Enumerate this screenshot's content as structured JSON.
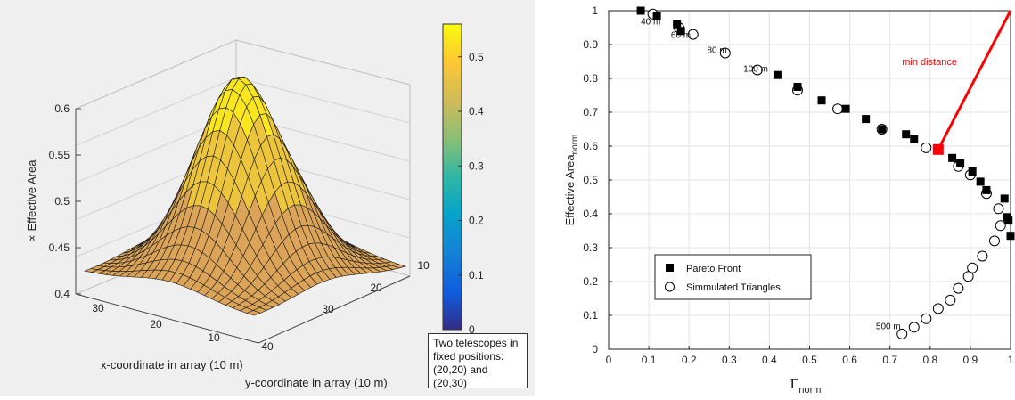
{
  "colors": {
    "surface_hi": "#f9e61e",
    "surface_mid": "#ecc53c",
    "surface_lo": "#dca458",
    "mesh": "#1a1a1a",
    "pareto": "#000000",
    "highlight": "#ff0000",
    "axis": "#222222"
  },
  "annotation": {
    "lines": [
      "Two telescopes in",
      "fixed positions:",
      "(20,20) and (20,30)"
    ]
  },
  "chart_data": [
    {
      "type": "surface3d",
      "zlabel": "∝ Effective Area",
      "xlabel": "x-coordinate in array (10 m)",
      "ylabel": "y-coordinate in array (10 m)",
      "z_ticks": [
        "0.4",
        "0.45",
        "0.5",
        "0.55",
        "0.6"
      ],
      "z_range": [
        0.4,
        0.6
      ],
      "x_ticks": [
        "30",
        "20",
        "10"
      ],
      "y_ticks": [
        "10",
        "20",
        "30",
        "40"
      ],
      "colorbar": {
        "ticks": [
          "0",
          "0.1",
          "0.2",
          "0.3",
          "0.4",
          "0.5"
        ],
        "range": [
          0,
          0.56
        ],
        "colormap": "parula"
      },
      "grid": true
    },
    {
      "type": "scatter",
      "xlabel_main": "Γ",
      "xlabel_sub": "norm",
      "ylabel_main": "Effective Area",
      "ylabel_sub": "norm",
      "xlim": [
        0,
        1
      ],
      "ylim": [
        0,
        1
      ],
      "x_ticks": [
        "0",
        "0.1",
        "0.2",
        "0.3",
        "0.4",
        "0.5",
        "0.6",
        "0.7",
        "0.8",
        "0.9",
        "1"
      ],
      "y_ticks": [
        "0",
        "0.1",
        "0.2",
        "0.3",
        "0.4",
        "0.5",
        "0.6",
        "0.7",
        "0.8",
        "0.9",
        "1"
      ],
      "grid": true,
      "legend_placement": "bottom-left",
      "series": [
        {
          "name": "Pareto Front",
          "marker": "filled-square",
          "points": [
            [
              0.08,
              1.0
            ],
            [
              0.12,
              0.985
            ],
            [
              0.17,
              0.96
            ],
            [
              0.18,
              0.94
            ],
            [
              0.42,
              0.81
            ],
            [
              0.47,
              0.775
            ],
            [
              0.53,
              0.735
            ],
            [
              0.59,
              0.71
            ],
            [
              0.64,
              0.68
            ],
            [
              0.68,
              0.65
            ],
            [
              0.74,
              0.635
            ],
            [
              0.76,
              0.62
            ],
            [
              0.855,
              0.565
            ],
            [
              0.875,
              0.55
            ],
            [
              0.905,
              0.525
            ],
            [
              0.925,
              0.495
            ],
            [
              0.94,
              0.47
            ],
            [
              0.985,
              0.445
            ],
            [
              0.99,
              0.39
            ],
            [
              0.995,
              0.38
            ],
            [
              1.0,
              0.335
            ]
          ]
        },
        {
          "name": "Simmulated Triangles",
          "marker": "open-circle",
          "points": [
            [
              0.11,
              0.99
            ],
            [
              0.175,
              0.95
            ],
            [
              0.21,
              0.93
            ],
            [
              0.29,
              0.875
            ],
            [
              0.37,
              0.825
            ],
            [
              0.47,
              0.765
            ],
            [
              0.57,
              0.71
            ],
            [
              0.68,
              0.65
            ],
            [
              0.79,
              0.595
            ],
            [
              0.87,
              0.54
            ],
            [
              0.9,
              0.515
            ],
            [
              0.94,
              0.46
            ],
            [
              0.97,
              0.415
            ],
            [
              0.975,
              0.365
            ],
            [
              0.96,
              0.32
            ],
            [
              0.93,
              0.275
            ],
            [
              0.905,
              0.24
            ],
            [
              0.895,
              0.215
            ],
            [
              0.87,
              0.18
            ],
            [
              0.85,
              0.145
            ],
            [
              0.82,
              0.12
            ],
            [
              0.79,
              0.09
            ],
            [
              0.76,
              0.065
            ],
            [
              0.73,
              0.045
            ]
          ]
        }
      ],
      "distance_labels": [
        {
          "text": "40 m",
          "x": 0.08,
          "y": 0.97
        },
        {
          "text": "60 m",
          "x": 0.155,
          "y": 0.93
        },
        {
          "text": "80 m",
          "x": 0.245,
          "y": 0.885
        },
        {
          "text": "100 m",
          "x": 0.335,
          "y": 0.83
        },
        {
          "text": "500 m",
          "x": 0.665,
          "y": 0.07
        }
      ],
      "highlight": {
        "label": "min distance",
        "point": [
          0.82,
          0.59
        ],
        "to": [
          1.0,
          1.0
        ]
      }
    }
  ]
}
